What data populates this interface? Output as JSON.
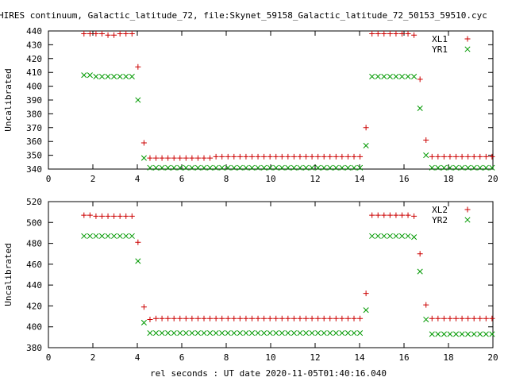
{
  "title": "HIRES continuum, Galactic_latitude_72, file:Skynet_59158_Galactic_latitude_72_50153_59510.cyc",
  "xlabel": "rel seconds : UT date 2020-11-05T01:40:16.040",
  "colors": {
    "plus": "#cc0000",
    "cross": "#009900"
  },
  "chart_data": [
    {
      "type": "scatter",
      "title": "HIRES continuum, Galactic_latitude_72, file:Skynet_59158_Galactic_latitude_72_50153_59510.cyc",
      "xlabel": "",
      "ylabel": "Uncalibrated",
      "xlim": [
        0,
        20
      ],
      "ylim": [
        340,
        440
      ],
      "xticks": [
        0,
        2,
        4,
        6,
        8,
        10,
        12,
        14,
        16,
        18,
        20
      ],
      "yticks": [
        340,
        350,
        360,
        370,
        380,
        390,
        400,
        410,
        420,
        430,
        440
      ],
      "grid": false,
      "legend_position": "top-right",
      "series": [
        {
          "name": "XL1",
          "marker": "plus",
          "color": "#cc0000",
          "x": [
            1.6,
            1.87,
            2.14,
            2.41,
            2.68,
            2.95,
            3.22,
            3.49,
            3.76,
            4.03,
            4.3,
            4.57,
            4.84,
            5.11,
            5.38,
            5.65,
            5.92,
            6.19,
            6.46,
            6.73,
            7.0,
            7.27,
            7.54,
            7.81,
            8.08,
            8.35,
            8.62,
            8.89,
            9.16,
            9.43,
            9.7,
            9.97,
            10.24,
            10.51,
            10.78,
            11.05,
            11.32,
            11.59,
            11.86,
            12.13,
            12.4,
            12.67,
            12.94,
            13.21,
            13.48,
            13.75,
            14.02,
            14.29,
            14.56,
            14.83,
            15.1,
            15.37,
            15.64,
            15.91,
            16.18,
            16.45,
            16.72,
            16.99,
            17.26,
            17.53,
            17.8,
            18.07,
            18.34,
            18.61,
            18.88,
            19.15,
            19.42,
            19.69,
            19.96
          ],
          "y": [
            438,
            438,
            438,
            438,
            437,
            437,
            438,
            438,
            438,
            414,
            359,
            348,
            348,
            348,
            348,
            348,
            348,
            348,
            348,
            348,
            348,
            348,
            349,
            349,
            349,
            349,
            349,
            349,
            349,
            349,
            349,
            349,
            349,
            349,
            349,
            349,
            349,
            349,
            349,
            349,
            349,
            349,
            349,
            349,
            349,
            349,
            349,
            370,
            438,
            438,
            438,
            438,
            438,
            438,
            438,
            437,
            405,
            361,
            349,
            349,
            349,
            349,
            349,
            349,
            349,
            349,
            349,
            349,
            349
          ]
        },
        {
          "name": "YR1",
          "marker": "cross",
          "color": "#009900",
          "x": [
            1.6,
            1.87,
            2.14,
            2.41,
            2.68,
            2.95,
            3.22,
            3.49,
            3.76,
            4.03,
            4.3,
            4.57,
            4.84,
            5.11,
            5.38,
            5.65,
            5.92,
            6.19,
            6.46,
            6.73,
            7.0,
            7.27,
            7.54,
            7.81,
            8.08,
            8.35,
            8.62,
            8.89,
            9.16,
            9.43,
            9.7,
            9.97,
            10.24,
            10.51,
            10.78,
            11.05,
            11.32,
            11.59,
            11.86,
            12.13,
            12.4,
            12.67,
            12.94,
            13.21,
            13.48,
            13.75,
            14.02,
            14.29,
            14.56,
            14.83,
            15.1,
            15.37,
            15.64,
            15.91,
            16.18,
            16.45,
            16.72,
            16.99,
            17.26,
            17.53,
            17.8,
            18.07,
            18.34,
            18.61,
            18.88,
            19.15,
            19.42,
            19.69,
            19.96
          ],
          "y": [
            408,
            408,
            407,
            407,
            407,
            407,
            407,
            407,
            407,
            390,
            348,
            341,
            341,
            341,
            341,
            341,
            341,
            341,
            341,
            341,
            341,
            341,
            341,
            341,
            341,
            341,
            341,
            341,
            341,
            341,
            341,
            341,
            341,
            341,
            341,
            341,
            341,
            341,
            341,
            341,
            341,
            341,
            341,
            341,
            341,
            341,
            341,
            357,
            407,
            407,
            407,
            407,
            407,
            407,
            407,
            407,
            384,
            350,
            341,
            341,
            341,
            341,
            341,
            341,
            341,
            341,
            341,
            341,
            341
          ]
        }
      ]
    },
    {
      "type": "scatter",
      "title": "",
      "xlabel": "rel seconds : UT date 2020-11-05T01:40:16.040",
      "ylabel": "Uncalibrated",
      "xlim": [
        0,
        20
      ],
      "ylim": [
        380,
        520
      ],
      "xticks": [
        0,
        2,
        4,
        6,
        8,
        10,
        12,
        14,
        16,
        18,
        20
      ],
      "yticks": [
        380,
        400,
        420,
        440,
        460,
        480,
        500,
        520
      ],
      "grid": false,
      "legend_position": "top-right",
      "series": [
        {
          "name": "XL2",
          "marker": "plus",
          "color": "#cc0000",
          "x": [
            1.6,
            1.87,
            2.14,
            2.41,
            2.68,
            2.95,
            3.22,
            3.49,
            3.76,
            4.03,
            4.3,
            4.57,
            4.84,
            5.11,
            5.38,
            5.65,
            5.92,
            6.19,
            6.46,
            6.73,
            7.0,
            7.27,
            7.54,
            7.81,
            8.08,
            8.35,
            8.62,
            8.89,
            9.16,
            9.43,
            9.7,
            9.97,
            10.24,
            10.51,
            10.78,
            11.05,
            11.32,
            11.59,
            11.86,
            12.13,
            12.4,
            12.67,
            12.94,
            13.21,
            13.48,
            13.75,
            14.02,
            14.29,
            14.56,
            14.83,
            15.1,
            15.37,
            15.64,
            15.91,
            16.18,
            16.45,
            16.72,
            16.99,
            17.26,
            17.53,
            17.8,
            18.07,
            18.34,
            18.61,
            18.88,
            19.15,
            19.42,
            19.69,
            19.96
          ],
          "y": [
            507,
            507,
            506,
            506,
            506,
            506,
            506,
            506,
            506,
            481,
            419,
            407,
            408,
            408,
            408,
            408,
            408,
            408,
            408,
            408,
            408,
            408,
            408,
            408,
            408,
            408,
            408,
            408,
            408,
            408,
            408,
            408,
            408,
            408,
            408,
            408,
            408,
            408,
            408,
            408,
            408,
            408,
            408,
            408,
            408,
            408,
            408,
            432,
            507,
            507,
            507,
            507,
            507,
            507,
            507,
            506,
            470,
            421,
            408,
            408,
            408,
            408,
            408,
            408,
            408,
            408,
            408,
            408,
            408
          ]
        },
        {
          "name": "YR2",
          "marker": "cross",
          "color": "#009900",
          "x": [
            1.6,
            1.87,
            2.14,
            2.41,
            2.68,
            2.95,
            3.22,
            3.49,
            3.76,
            4.03,
            4.3,
            4.57,
            4.84,
            5.11,
            5.38,
            5.65,
            5.92,
            6.19,
            6.46,
            6.73,
            7.0,
            7.27,
            7.54,
            7.81,
            8.08,
            8.35,
            8.62,
            8.89,
            9.16,
            9.43,
            9.7,
            9.97,
            10.24,
            10.51,
            10.78,
            11.05,
            11.32,
            11.59,
            11.86,
            12.13,
            12.4,
            12.67,
            12.94,
            13.21,
            13.48,
            13.75,
            14.02,
            14.29,
            14.56,
            14.83,
            15.1,
            15.37,
            15.64,
            15.91,
            16.18,
            16.45,
            16.72,
            16.99,
            17.26,
            17.53,
            17.8,
            18.07,
            18.34,
            18.61,
            18.88,
            19.15,
            19.42,
            19.69,
            19.96
          ],
          "y": [
            487,
            487,
            487,
            487,
            487,
            487,
            487,
            487,
            487,
            463,
            404,
            394,
            394,
            394,
            394,
            394,
            394,
            394,
            394,
            394,
            394,
            394,
            394,
            394,
            394,
            394,
            394,
            394,
            394,
            394,
            394,
            394,
            394,
            394,
            394,
            394,
            394,
            394,
            394,
            394,
            394,
            394,
            394,
            394,
            394,
            394,
            394,
            416,
            487,
            487,
            487,
            487,
            487,
            487,
            487,
            486,
            453,
            407,
            393,
            393,
            393,
            393,
            393,
            393,
            393,
            393,
            393,
            393,
            393
          ]
        }
      ]
    }
  ]
}
